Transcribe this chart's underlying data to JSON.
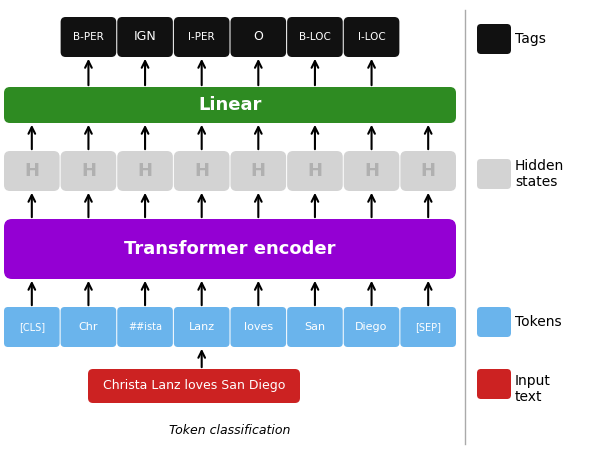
{
  "fig_width": 6.0,
  "fig_height": 4.54,
  "dpi": 100,
  "bg_color": "#ffffff",
  "token_labels": [
    "[CLS]",
    "Chr",
    "##ista",
    "Lanz",
    "loves",
    "San",
    "Diego",
    "[SEP]"
  ],
  "token_color": "#6ab4ec",
  "token_text_color": "#ffffff",
  "hidden_labels": [
    "H",
    "H",
    "H",
    "H",
    "H",
    "H",
    "H",
    "H"
  ],
  "hidden_color": "#d3d3d3",
  "hidden_text_color": "#b0b0b0",
  "transformer_color": "#9400d3",
  "transformer_text": "Transformer encoder",
  "transformer_text_color": "#ffffff",
  "linear_color": "#2e8b22",
  "linear_text": "Linear",
  "linear_text_color": "#ffffff",
  "tag_labels": [
    "B-PER",
    "IGN",
    "I-PER",
    "O",
    "B-LOC",
    "I-LOC"
  ],
  "tag_color": "#111111",
  "tag_text_color": "#ffffff",
  "input_text": "Christa Lanz loves San Diego",
  "input_text_color": "#ffffff",
  "input_box_color": "#cc2222",
  "title_text": "Token classification",
  "legend_items": [
    {
      "label": "Tags",
      "color": "#111111"
    },
    {
      "label": "Hidden\nstates",
      "color": "#d3d3d3"
    },
    {
      "label": "Tokens",
      "color": "#6ab4ec"
    },
    {
      "label": "Input\ntext",
      "color": "#cc2222"
    }
  ]
}
